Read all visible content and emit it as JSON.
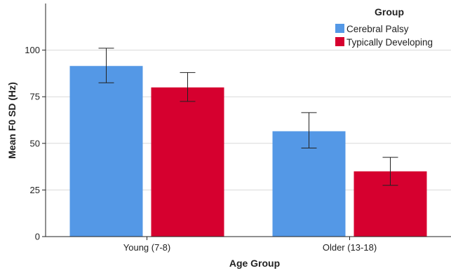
{
  "chart_data": {
    "type": "bar",
    "title": "",
    "xlabel": "Age Group",
    "ylabel": "Mean F0 SD (Hz)",
    "categories": [
      "Young (7-8)",
      "Older (13-18)"
    ],
    "ylim": [
      0,
      125
    ],
    "yticks": [
      0,
      25,
      50,
      75,
      100
    ],
    "grid": true,
    "legend": {
      "title": "Group",
      "position": "top-right"
    },
    "series": [
      {
        "name": "Cerebral Palsy",
        "color": "#5498e6",
        "values": [
          91.5,
          56.5
        ],
        "error_low": [
          82.5,
          47.5
        ],
        "error_high": [
          101,
          66.5
        ]
      },
      {
        "name": "Typically Developing",
        "color": "#d6002f",
        "values": [
          80,
          35
        ],
        "error_low": [
          72.5,
          27.5
        ],
        "error_high": [
          88,
          42.5
        ]
      }
    ]
  }
}
